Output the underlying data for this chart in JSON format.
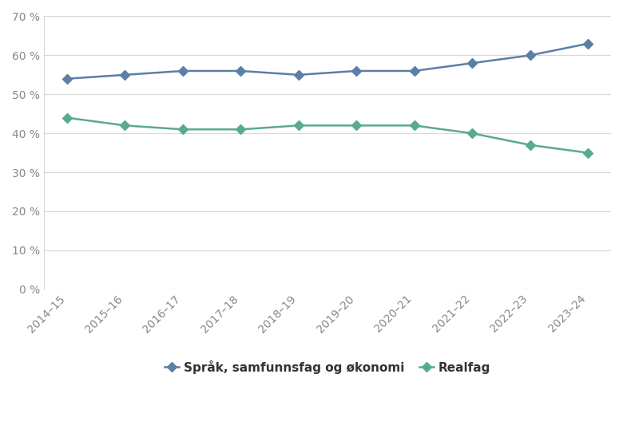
{
  "years": [
    "2014–15",
    "2015–16",
    "2016–17",
    "2017–18",
    "2018–19",
    "2019–20",
    "2020–21",
    "2021–22",
    "2022–23",
    "2023–24"
  ],
  "sprak": [
    54,
    55,
    56,
    56,
    55,
    56,
    56,
    58,
    60,
    63
  ],
  "realfag": [
    44,
    42,
    41,
    41,
    42,
    42,
    42,
    40,
    37,
    35
  ],
  "sprak_color": "#5b7fa6",
  "realfag_color": "#5aab8a",
  "background_color": "#ffffff",
  "legend_sprak": "Språk, samfunnsfag og økonomi",
  "legend_realfag": "Realfag",
  "ylim": [
    0,
    70
  ],
  "yticks": [
    0,
    10,
    20,
    30,
    40,
    50,
    60,
    70
  ],
  "grid_color": "#d8d8d8",
  "line_width": 1.8,
  "marker_size": 6,
  "marker_style": "D",
  "tick_color": "#888888",
  "tick_fontsize": 10,
  "legend_fontsize": 11
}
